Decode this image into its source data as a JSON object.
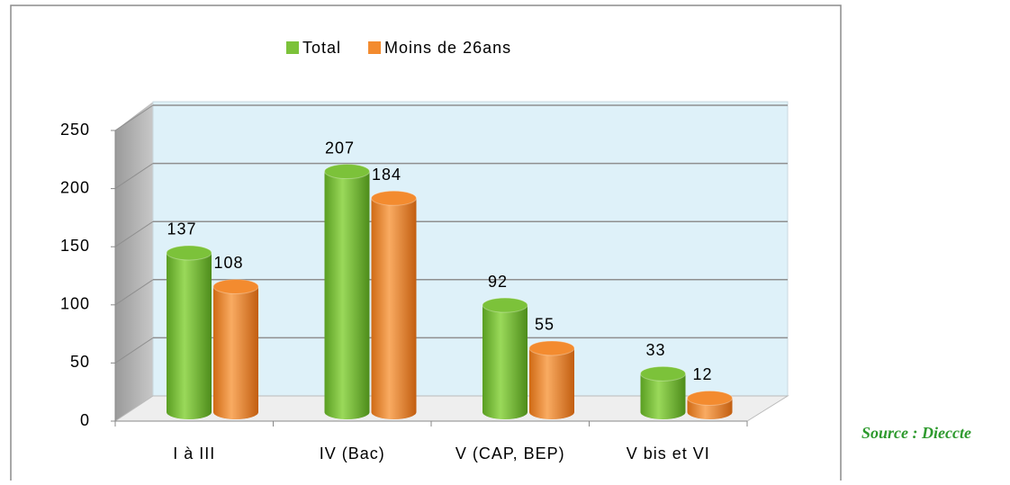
{
  "chart_data": {
    "type": "bar3d",
    "categories": [
      "I à III",
      "IV (Bac)",
      "V (CAP, BEP)",
      "V bis et VI"
    ],
    "series": [
      {
        "name": "Total",
        "color": "#7cc23a",
        "values": [
          137,
          207,
          92,
          33
        ]
      },
      {
        "name": "Moins de 26ans",
        "color": "#f38b2f",
        "values": [
          108,
          184,
          55,
          12
        ]
      }
    ],
    "ylim": [
      0,
      250
    ],
    "yticks": [
      0,
      50,
      100,
      150,
      200,
      250
    ],
    "grid": true,
    "legend": "top",
    "source": "Source : Dieccte"
  }
}
